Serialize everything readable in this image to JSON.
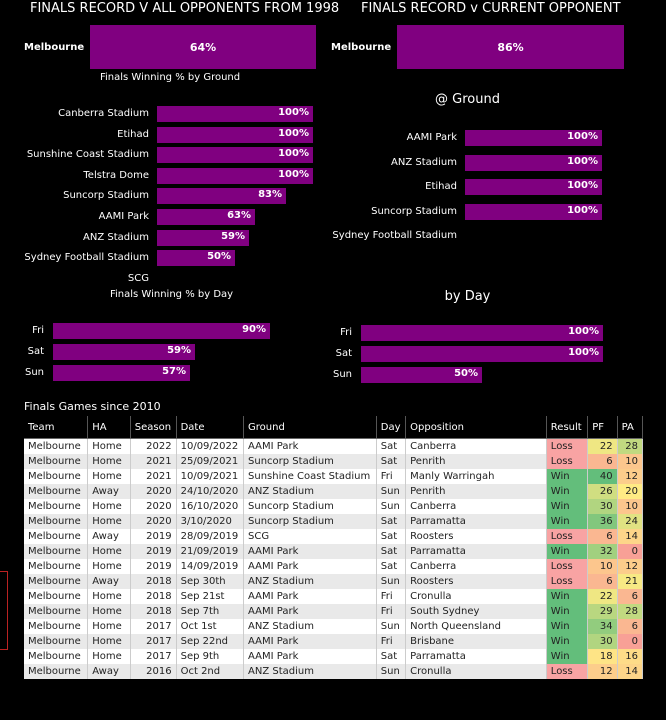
{
  "left_title": "FINALS RECORD V ALL OPPONENTS FROM 1998",
  "right_title": "FINALS RECORD v CURRENT OPPONENT",
  "left_overall": {
    "team": "Melbourne",
    "value": "64%",
    "pct": 64
  },
  "right_overall": {
    "team": "Melbourne",
    "value": "86%",
    "pct": 86
  },
  "left_ground_title": "Finals Winning % by Ground",
  "left_grounds": [
    {
      "name": "Canberra Stadium",
      "value": "100%",
      "pct": 100
    },
    {
      "name": "Etihad",
      "value": "100%",
      "pct": 100
    },
    {
      "name": "Sunshine Coast Stadium",
      "value": "100%",
      "pct": 100
    },
    {
      "name": "Telstra Dome",
      "value": "100%",
      "pct": 100
    },
    {
      "name": "Suncorp Stadium",
      "value": "83%",
      "pct": 83
    },
    {
      "name": "AAMI Park",
      "value": "63%",
      "pct": 63
    },
    {
      "name": "ANZ Stadium",
      "value": "59%",
      "pct": 59
    },
    {
      "name": "Sydney Football Stadium",
      "value": "50%",
      "pct": 50
    },
    {
      "name": "SCG",
      "value": "",
      "pct": 0
    }
  ],
  "left_day_title": "Finals Winning % by Day",
  "left_days": [
    {
      "name": "Fri",
      "value": "90%",
      "pct": 90
    },
    {
      "name": "Sat",
      "value": "59%",
      "pct": 59
    },
    {
      "name": "Sun",
      "value": "57%",
      "pct": 57
    }
  ],
  "right_ground_title": "@ Ground",
  "right_grounds": [
    {
      "name": "AAMI Park",
      "value": "100%",
      "pct": 100
    },
    {
      "name": "ANZ Stadium",
      "value": "100%",
      "pct": 100
    },
    {
      "name": "Etihad",
      "value": "100%",
      "pct": 100
    },
    {
      "name": "Suncorp Stadium",
      "value": "100%",
      "pct": 100
    },
    {
      "name": "Sydney Football Stadium",
      "value": "",
      "pct": 0
    }
  ],
  "right_day_title": "by Day",
  "right_days": [
    {
      "name": "Fri",
      "value": "100%",
      "pct": 100
    },
    {
      "name": "Sat",
      "value": "100%",
      "pct": 100
    },
    {
      "name": "Sun",
      "value": "50%",
      "pct": 50
    }
  ],
  "table_title": "Finals Games since 2010",
  "table_headers": [
    "Team",
    "HA",
    "Season",
    "Date",
    "Ground",
    "Day",
    "Opposition",
    "Result",
    "PF",
    "PA"
  ],
  "rows": [
    [
      "Melbourne",
      "Home",
      "2022",
      "10/09/2022",
      "AAMI Park",
      "Sat",
      "Canberra",
      "Loss",
      "22",
      "28"
    ],
    [
      "Melbourne",
      "Home",
      "2021",
      "25/09/2021",
      "Suncorp Stadium",
      "Sat",
      "Penrith",
      "Loss",
      "6",
      "10"
    ],
    [
      "Melbourne",
      "Home",
      "2021",
      "10/09/2021",
      "Sunshine Coast Stadium",
      "Fri",
      "Manly Warringah",
      "Win",
      "40",
      "12"
    ],
    [
      "Melbourne",
      "Away",
      "2020",
      "24/10/2020",
      "ANZ Stadium",
      "Sun",
      "Penrith",
      "Win",
      "26",
      "20"
    ],
    [
      "Melbourne",
      "Home",
      "2020",
      "16/10/2020",
      "Suncorp Stadium",
      "Sun",
      "Canberra",
      "Win",
      "30",
      "10"
    ],
    [
      "Melbourne",
      "Home",
      "2020",
      "3/10/2020",
      "Suncorp Stadium",
      "Sat",
      "Parramatta",
      "Win",
      "36",
      "24"
    ],
    [
      "Melbourne",
      "Away",
      "2019",
      "28/09/2019",
      "SCG",
      "Sat",
      "Roosters",
      "Loss",
      "6",
      "14"
    ],
    [
      "Melbourne",
      "Home",
      "2019",
      "21/09/2019",
      "AAMI Park",
      "Sat",
      "Parramatta",
      "Win",
      "32",
      "0"
    ],
    [
      "Melbourne",
      "Home",
      "2019",
      "14/09/2019",
      "AAMI Park",
      "Sat",
      "Canberra",
      "Loss",
      "10",
      "12"
    ],
    [
      "Melbourne",
      "Away",
      "2018",
      "Sep 30th",
      "ANZ Stadium",
      "Sun",
      "Roosters",
      "Loss",
      "6",
      "21"
    ],
    [
      "Melbourne",
      "Home",
      "2018",
      "Sep 21st",
      "AAMI Park",
      "Fri",
      "Cronulla",
      "Win",
      "22",
      "6"
    ],
    [
      "Melbourne",
      "Home",
      "2018",
      "Sep 7th",
      "AAMI Park",
      "Fri",
      "South Sydney",
      "Win",
      "29",
      "28"
    ],
    [
      "Melbourne",
      "Home",
      "2017",
      "Oct 1st",
      "ANZ Stadium",
      "Sun",
      "North Queensland",
      "Win",
      "34",
      "6"
    ],
    [
      "Melbourne",
      "Home",
      "2017",
      "Sep 22nd",
      "AAMI Park",
      "Fri",
      "Brisbane",
      "Win",
      "30",
      "0"
    ],
    [
      "Melbourne",
      "Home",
      "2017",
      "Sep 9th",
      "AAMI Park",
      "Sat",
      "Parramatta",
      "Win",
      "18",
      "16"
    ],
    [
      "Melbourne",
      "Away",
      "2016",
      "Oct 2nd",
      "ANZ Stadium",
      "Sun",
      "Cronulla",
      "Loss",
      "12",
      "14"
    ]
  ]
}
